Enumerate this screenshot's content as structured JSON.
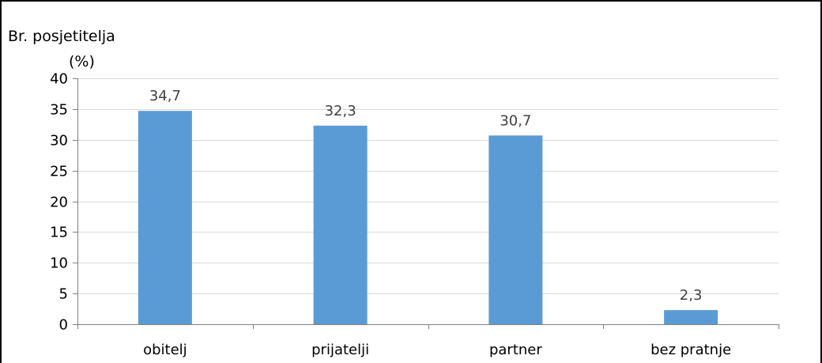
{
  "chart_data": {
    "type": "bar",
    "title": "",
    "xlabel": "",
    "ylabel": "Br. posjetitelja",
    "ylabel_unit": "(%)",
    "categories": [
      "obitelj",
      "prijatelji",
      "partner",
      "bez pratnje"
    ],
    "values": [
      34.7,
      32.3,
      30.7,
      2.3
    ],
    "data_labels": [
      "34,7",
      "32,3",
      "30,7",
      "2,3"
    ],
    "ylim": [
      0,
      40
    ],
    "yticks": [
      0,
      5,
      10,
      15,
      20,
      25,
      30,
      35,
      40
    ],
    "grid": true,
    "legend": "none",
    "bar_color": "#5b9bd5"
  }
}
